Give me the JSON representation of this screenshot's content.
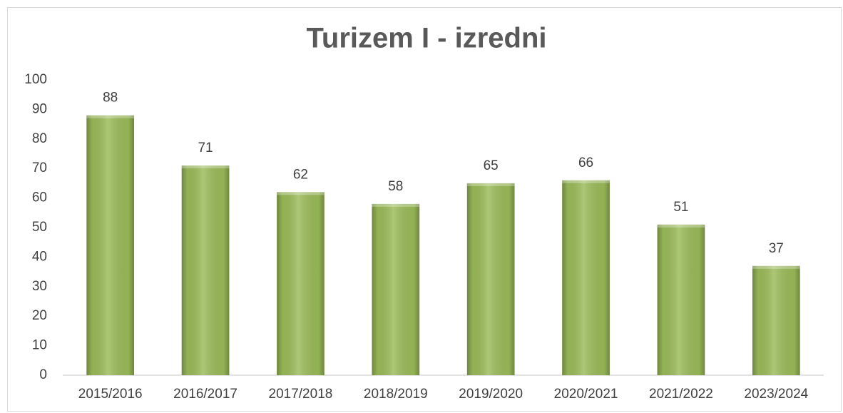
{
  "chart_data": {
    "type": "bar",
    "title": "Turizem I - izredni",
    "categories": [
      "2015/2016",
      "2016/2017",
      "2017/2018",
      "2018/2019",
      "2019/2020",
      "2020/2021",
      "2021/2022",
      "2023/2024"
    ],
    "values": [
      88,
      71,
      62,
      58,
      65,
      66,
      51,
      37
    ],
    "color": "#9bbb59",
    "ylim": [
      0,
      100
    ],
    "yticks": [
      0,
      10,
      20,
      30,
      40,
      50,
      60,
      70,
      80,
      90,
      100
    ],
    "grid": false
  }
}
